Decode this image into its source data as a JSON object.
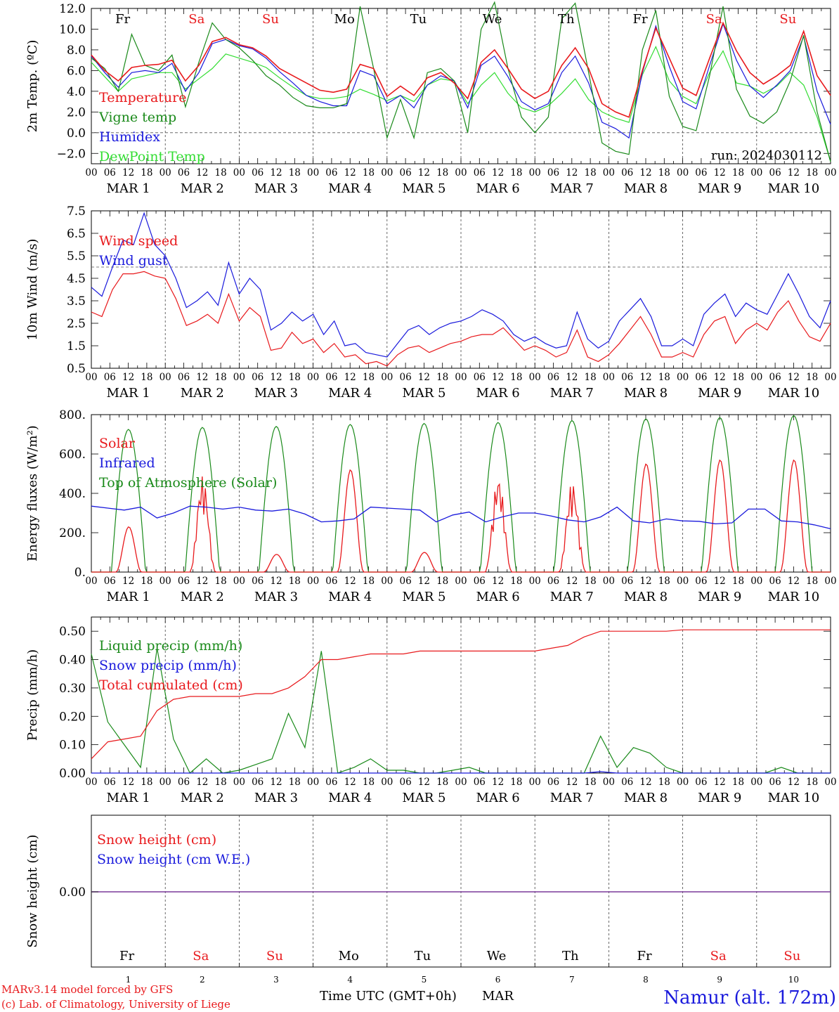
{
  "days": [
    {
      "label": "Fr",
      "color": "#000000"
    },
    {
      "label": "Sa",
      "color": "#e8191c"
    },
    {
      "label": "Su",
      "color": "#e8191c"
    },
    {
      "label": "Mo",
      "color": "#000000"
    },
    {
      "label": "Tu",
      "color": "#000000"
    },
    {
      "label": "We",
      "color": "#000000"
    },
    {
      "label": "Th",
      "color": "#000000"
    },
    {
      "label": "Fr",
      "color": "#000000"
    },
    {
      "label": "Sa",
      "color": "#e8191c"
    },
    {
      "label": "Su",
      "color": "#e8191c"
    }
  ],
  "hour_ticks": [
    "00",
    "06",
    "12",
    "18",
    "00",
    "06",
    "12",
    "18",
    "00",
    "06",
    "12",
    "18",
    "00",
    "06",
    "12",
    "18",
    "00",
    "06",
    "12",
    "18",
    "00",
    "06",
    "12",
    "18",
    "00",
    "06",
    "12",
    "18",
    "00",
    "06",
    "12",
    "18",
    "00",
    "06",
    "12",
    "18",
    "00",
    "06",
    "12",
    "18",
    "00"
  ],
  "date_labels": [
    "MAR  1",
    "MAR  2",
    "MAR  3",
    "MAR  4",
    "MAR  5",
    "MAR  6",
    "MAR  7",
    "MAR  8",
    "MAR  9",
    "MAR 10"
  ],
  "bottom_day_numbers": [
    "1",
    "2",
    "3",
    "4",
    "5",
    "6",
    "7",
    "8",
    "9",
    "10"
  ],
  "colors": {
    "red": "#e8191c",
    "dkgreen": "#1a8a1a",
    "blue": "#1a1adc",
    "ltgreen": "#33dd33",
    "purple": "#7a3a9a"
  },
  "footer": {
    "xlabel": "Time UTC (GMT+0h)",
    "month": "MAR",
    "credit1": "MARv3.14 model forced by GFS",
    "credit2": "(c) Lab. of Climatology, University of Liege",
    "station": "Namur (alt. 172m)"
  },
  "chart_data": [
    {
      "type": "line",
      "ylabel": "2m Temp. (ºC)",
      "ylim": [
        -3,
        12
      ],
      "yticks": [
        "12.0",
        "10.0",
        "8.0",
        "6.0",
        "4.0",
        "2.0",
        "0.0",
        "−2.0"
      ],
      "run_label": "run: 2024030112",
      "grid": "vertical dashed at 00 UTC, dashed zero line",
      "series": [
        {
          "name": "Temperature",
          "color": "#e8191c",
          "values": [
            7.5,
            6.0,
            5.0,
            6.3,
            6.5,
            6.6,
            7.0,
            5.0,
            6.5,
            8.8,
            9.2,
            8.5,
            8.2,
            7.4,
            6.2,
            5.5,
            4.8,
            4.1,
            3.9,
            4.2,
            6.6,
            6.2,
            3.5,
            4.5,
            3.6,
            5.3,
            5.8,
            4.8,
            3.3,
            6.8,
            8.0,
            6.2,
            4.2,
            3.3,
            4.0,
            6.5,
            8.2,
            6.2,
            2.8,
            2.0,
            1.5,
            6.0,
            10.1,
            7.2,
            4.3,
            3.6,
            7.2,
            10.6,
            7.9,
            5.8,
            4.7,
            5.5,
            6.5,
            9.8,
            5.5,
            3.6
          ]
        },
        {
          "name": "Vigne temp",
          "color": "#1a8a1a",
          "values": [
            7.2,
            6.2,
            4.0,
            9.5,
            6.5,
            6.0,
            7.5,
            2.5,
            6.8,
            10.6,
            9.0,
            8.2,
            7.0,
            5.5,
            4.6,
            3.4,
            2.6,
            2.4,
            2.4,
            2.8,
            12.2,
            6.2,
            -0.5,
            3.2,
            -0.5,
            5.8,
            6.2,
            5.0,
            0.0,
            10.0,
            12.6,
            6.2,
            1.5,
            0.0,
            1.5,
            11.0,
            12.5,
            5.8,
            -1.0,
            -1.8,
            -2.1,
            8.0,
            11.8,
            3.5,
            0.6,
            0.2,
            5.5,
            12.2,
            4.2,
            1.6,
            0.9,
            2.0,
            5.0,
            9.4,
            2.0,
            -2.8
          ]
        },
        {
          "name": "Humidex",
          "color": "#1a1adc",
          "values": [
            7.4,
            5.8,
            4.4,
            5.8,
            6.0,
            5.8,
            6.7,
            4.0,
            5.8,
            8.6,
            9.0,
            8.4,
            8.1,
            7.2,
            5.9,
            4.8,
            3.6,
            3.0,
            2.6,
            2.6,
            6.0,
            5.5,
            2.8,
            3.6,
            2.4,
            4.6,
            5.5,
            5.0,
            2.4,
            6.5,
            7.4,
            5.4,
            3.0,
            2.2,
            2.8,
            5.8,
            7.4,
            4.8,
            1.0,
            0.4,
            -0.5,
            5.8,
            10.3,
            6.4,
            3.0,
            2.3,
            6.5,
            10.5,
            7.0,
            4.5,
            3.4,
            4.6,
            6.0,
            9.3,
            4.0,
            0.8
          ]
        },
        {
          "name": "DewPoint Temp",
          "color": "#33dd33",
          "values": [
            6.8,
            5.4,
            4.0,
            5.2,
            5.5,
            5.8,
            5.8,
            4.2,
            5.2,
            6.2,
            7.6,
            7.2,
            6.8,
            6.3,
            5.3,
            4.4,
            3.6,
            3.3,
            3.3,
            3.5,
            4.2,
            3.7,
            3.1,
            3.6,
            3.0,
            4.6,
            5.2,
            5.0,
            2.8,
            4.6,
            5.8,
            3.8,
            2.4,
            2.0,
            2.6,
            3.8,
            5.2,
            3.2,
            2.0,
            1.4,
            1.0,
            5.6,
            8.3,
            5.0,
            3.5,
            2.8,
            5.8,
            7.9,
            4.8,
            4.5,
            3.8,
            4.5,
            5.8,
            4.6,
            1.5,
            -2.8
          ]
        }
      ]
    },
    {
      "type": "line",
      "ylabel": "10m Wind (m/s)",
      "ylim": [
        0.5,
        7.5
      ],
      "yticks": [
        "7.5",
        "6.5",
        "5.5",
        "4.5",
        "3.5",
        "2.5",
        "1.5",
        "0.5"
      ],
      "reference_line": 5.0,
      "series": [
        {
          "name": "Wind speed",
          "color": "#e8191c",
          "values": [
            3.0,
            2.8,
            4.0,
            4.7,
            4.7,
            4.8,
            4.6,
            4.5,
            3.6,
            2.4,
            2.6,
            2.9,
            2.5,
            3.8,
            2.6,
            3.2,
            2.8,
            1.3,
            1.4,
            2.1,
            1.6,
            1.8,
            1.2,
            1.6,
            1.0,
            1.1,
            0.7,
            0.8,
            0.6,
            1.1,
            1.4,
            1.5,
            1.2,
            1.4,
            1.6,
            1.7,
            1.9,
            2.0,
            2.0,
            2.3,
            1.8,
            1.3,
            1.5,
            1.3,
            1.0,
            1.2,
            2.2,
            1.0,
            0.8,
            1.1,
            1.6,
            2.2,
            2.8,
            2.0,
            1.0,
            1.0,
            1.2,
            1.0,
            2.0,
            2.6,
            2.8,
            1.6,
            2.2,
            2.5,
            2.2,
            3.0,
            3.5,
            2.6,
            1.9,
            1.7,
            2.5
          ]
        },
        {
          "name": "Wind gust",
          "color": "#1a1adc",
          "values": [
            4.1,
            3.7,
            5.0,
            6.2,
            6.0,
            7.4,
            6.0,
            5.5,
            4.5,
            3.2,
            3.5,
            3.9,
            3.3,
            5.2,
            3.8,
            4.5,
            4.0,
            2.2,
            2.5,
            3.0,
            2.6,
            2.9,
            2.0,
            2.6,
            1.5,
            1.6,
            1.2,
            1.1,
            1.0,
            1.6,
            2.2,
            2.4,
            2.0,
            2.3,
            2.5,
            2.6,
            2.8,
            3.1,
            2.9,
            2.6,
            2.0,
            1.7,
            1.9,
            1.6,
            1.4,
            1.5,
            3.0,
            1.8,
            1.4,
            1.7,
            2.6,
            3.1,
            3.6,
            2.8,
            1.5,
            1.5,
            1.8,
            1.5,
            2.9,
            3.4,
            3.8,
            2.8,
            3.4,
            3.1,
            2.9,
            3.8,
            4.7,
            3.8,
            2.8,
            2.3,
            3.5
          ]
        }
      ]
    },
    {
      "type": "line",
      "ylabel": "Energy fluxes (W/m²)",
      "ylim": [
        0,
        800
      ],
      "yticks": [
        "800.",
        "600.",
        "400.",
        "200.",
        "0."
      ],
      "daytime_peaks": {
        "Solar": [
          230,
          490,
          90,
          520,
          100,
          490,
          460,
          550,
          570,
          570
        ],
        "Top of Atmosphere (Solar)": [
          725,
          735,
          740,
          750,
          755,
          760,
          770,
          778,
          785,
          795
        ]
      },
      "series": [
        {
          "name": "Solar",
          "color": "#e8191c"
        },
        {
          "name": "Infrared",
          "color": "#1a1adc",
          "values": [
            335,
            325,
            315,
            330,
            275,
            300,
            335,
            330,
            320,
            330,
            315,
            310,
            320,
            295,
            255,
            260,
            270,
            330,
            325,
            320,
            315,
            255,
            290,
            305,
            255,
            280,
            300,
            300,
            285,
            265,
            255,
            280,
            330,
            260,
            250,
            270,
            260,
            258,
            245,
            250,
            320,
            320,
            260,
            255,
            240,
            220
          ]
        },
        {
          "name": "Top of Atmosphere (Solar)",
          "color": "#1a8a1a"
        }
      ]
    },
    {
      "type": "line",
      "ylabel": "Precip (mm/h)",
      "ylim": [
        0,
        0.55
      ],
      "yticks": [
        "0.50",
        "0.40",
        "0.30",
        "0.20",
        "0.10",
        "0.00"
      ],
      "series": [
        {
          "name": "Liquid precip (mm/h)",
          "color": "#1a8a1a",
          "values": [
            0.42,
            0.18,
            0.1,
            0.02,
            0.44,
            0.12,
            0.0,
            0.05,
            0.0,
            0.01,
            0.03,
            0.05,
            0.21,
            0.09,
            0.43,
            0.0,
            0.02,
            0.05,
            0.01,
            0.01,
            0.0,
            0.0,
            0.01,
            0.02,
            0.0,
            0.0,
            0.0,
            0.0,
            0.0,
            0.0,
            0.0,
            0.13,
            0.02,
            0.09,
            0.07,
            0.02,
            0.0,
            0.0,
            0.0,
            0.0,
            0.0,
            0.0,
            0.02,
            0.0,
            0.0,
            0.0
          ]
        },
        {
          "name": "Snow precip (mm/h)",
          "color": "#1a1adc",
          "values": [
            0.0,
            0.0,
            0.0,
            0.0,
            0.0,
            0.0,
            0.0,
            0.0,
            0.0,
            0.0,
            0.0,
            0.0,
            0.0,
            0.0,
            0.0,
            0.0,
            0.0,
            0.0,
            0.0,
            0.0,
            0.0,
            0.0,
            0.0,
            0.0,
            0.0,
            0.0,
            0.0,
            0.0,
            0.0,
            0.0,
            0.0,
            0.005,
            0.0,
            0.0,
            0.0,
            0.0,
            0.0,
            0.0,
            0.0,
            0.0,
            0.0,
            0.0,
            0.0,
            0.0,
            0.0,
            0.0
          ]
        },
        {
          "name": "Total cumulated (cm)",
          "color": "#e8191c",
          "values": [
            0.05,
            0.11,
            0.12,
            0.13,
            0.22,
            0.26,
            0.27,
            0.27,
            0.27,
            0.27,
            0.28,
            0.28,
            0.3,
            0.34,
            0.4,
            0.4,
            0.41,
            0.42,
            0.42,
            0.42,
            0.43,
            0.43,
            0.43,
            0.43,
            0.43,
            0.43,
            0.43,
            0.43,
            0.44,
            0.45,
            0.48,
            0.5,
            0.5,
            0.5,
            0.5,
            0.5,
            0.505,
            0.505,
            0.505,
            0.505,
            0.505,
            0.505,
            0.505,
            0.505,
            0.505,
            0.505
          ]
        }
      ]
    },
    {
      "type": "line",
      "ylabel": "Snow height (cm)",
      "yticks": [
        "0.00"
      ],
      "series": [
        {
          "name": "Snow height (cm)",
          "color": "#e8191c",
          "values": [
            0,
            0
          ]
        },
        {
          "name": "Snow height (cm W.E.)",
          "color": "#1a1adc",
          "values": [
            0,
            0
          ]
        }
      ]
    }
  ]
}
